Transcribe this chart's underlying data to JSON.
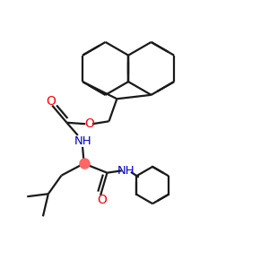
{
  "bg_color": "#ffffff",
  "bond_color": "#1a1a1a",
  "O_color": "#ff0000",
  "N_color": "#0000cc",
  "lw": 1.6,
  "figsize": [
    3.0,
    3.0
  ],
  "dpi": 100,
  "xlim": [
    0,
    10
  ],
  "ylim": [
    0,
    10
  ]
}
